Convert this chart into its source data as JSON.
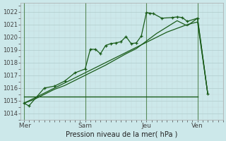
{
  "background_color": "#cce8ea",
  "grid_major_color": "#b0cccc",
  "grid_minor_color": "#c4d8d8",
  "line_color": "#1a5c1a",
  "vline_color": "#5a8a5a",
  "ylabel": "Pression niveau de la mer( hPa )",
  "ylim": [
    1013.5,
    1022.7
  ],
  "yticks": [
    1014,
    1015,
    1016,
    1017,
    1018,
    1019,
    1020,
    1021,
    1022
  ],
  "day_labels": [
    " Mer",
    "Sam",
    "Jeu",
    "Ven"
  ],
  "day_positions": [
    0,
    6,
    12,
    17
  ],
  "vline_positions": [
    0,
    6,
    12,
    17
  ],
  "xlim": [
    -0.3,
    19.5
  ],
  "series1_x": [
    0,
    0.5,
    2,
    3,
    4,
    5,
    6,
    6.5,
    7,
    7.5,
    8,
    8.5,
    9,
    9.5,
    10,
    10.5,
    11,
    11.5,
    12,
    12.3,
    12.7,
    13.5,
    14.5,
    15,
    15.5,
    16,
    17,
    18
  ],
  "series1_y": [
    1014.8,
    1014.6,
    1016.0,
    1016.15,
    1016.55,
    1017.2,
    1017.5,
    1019.05,
    1019.05,
    1018.7,
    1019.35,
    1019.5,
    1019.55,
    1019.65,
    1020.05,
    1019.5,
    1019.55,
    1020.1,
    1021.95,
    1021.9,
    1021.85,
    1021.5,
    1021.55,
    1021.6,
    1021.55,
    1021.25,
    1021.5,
    1015.55
  ],
  "series2_x": [
    0,
    1,
    2,
    3,
    4,
    5,
    6,
    7,
    8,
    9,
    10,
    11,
    12,
    13,
    14,
    15,
    16,
    17,
    18
  ],
  "series2_y": [
    1014.8,
    1015.2,
    1015.6,
    1016.0,
    1016.4,
    1016.8,
    1017.2,
    1017.6,
    1018.0,
    1018.4,
    1018.8,
    1019.2,
    1019.6,
    1020.0,
    1020.4,
    1020.7,
    1021.0,
    1021.2,
    1015.55
  ],
  "series3_x": [
    0,
    1,
    2,
    3,
    4,
    5,
    6,
    7,
    8,
    9,
    10,
    11,
    12,
    13,
    14,
    15,
    16,
    17,
    18
  ],
  "series3_y": [
    1014.8,
    1015.1,
    1015.5,
    1015.9,
    1016.2,
    1016.6,
    1017.0,
    1017.4,
    1017.8,
    1018.25,
    1018.7,
    1019.1,
    1019.7,
    1020.3,
    1020.8,
    1021.3,
    1020.9,
    1021.5,
    1015.55
  ],
  "flat_line_x": [
    0,
    17
  ],
  "flat_line_y": [
    1015.3,
    1015.3
  ]
}
